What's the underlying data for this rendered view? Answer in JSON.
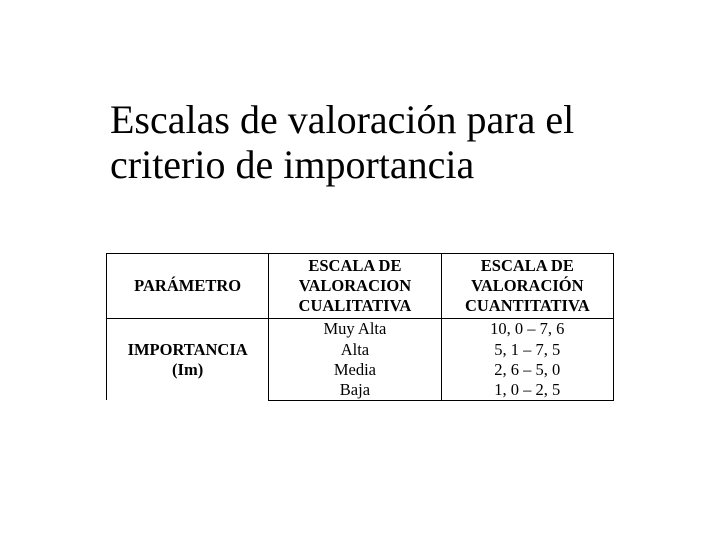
{
  "slide": {
    "title": "Escalas de valoración para el criterio de importancia",
    "background_color": "#ffffff",
    "text_color": "#000000",
    "title_fontsize": 40
  },
  "table": {
    "type": "table",
    "border_color": "#000000",
    "border_width": 1.5,
    "cell_fontsize": 16.5,
    "text_align": "center",
    "columns": [
      {
        "key": "parametro",
        "label": "PARÁMETRO",
        "width_pct": 32,
        "font_weight": "bold"
      },
      {
        "key": "cualitativa",
        "label": "ESCALA DE VALORACION CUALITATIVA",
        "width_pct": 34,
        "font_weight": "bold"
      },
      {
        "key": "cuantitativa",
        "label": "ESCALA DE VALORACIÓN CUANTITATIVA",
        "width_pct": 34,
        "font_weight": "bold"
      }
    ],
    "row_group": {
      "parametro_line1": "IMPORTANCIA",
      "parametro_line2": "(Im)",
      "levels": [
        {
          "cualitativa": "Muy Alta",
          "cuantitativa": "10, 0 – 7, 6"
        },
        {
          "cualitativa": "Alta",
          "cuantitativa": "5, 1 – 7, 5"
        },
        {
          "cualitativa": "Media",
          "cuantitativa": "2, 6 – 5, 0"
        },
        {
          "cualitativa": "Baja",
          "cuantitativa": "1, 0 – 2, 5"
        }
      ]
    }
  }
}
